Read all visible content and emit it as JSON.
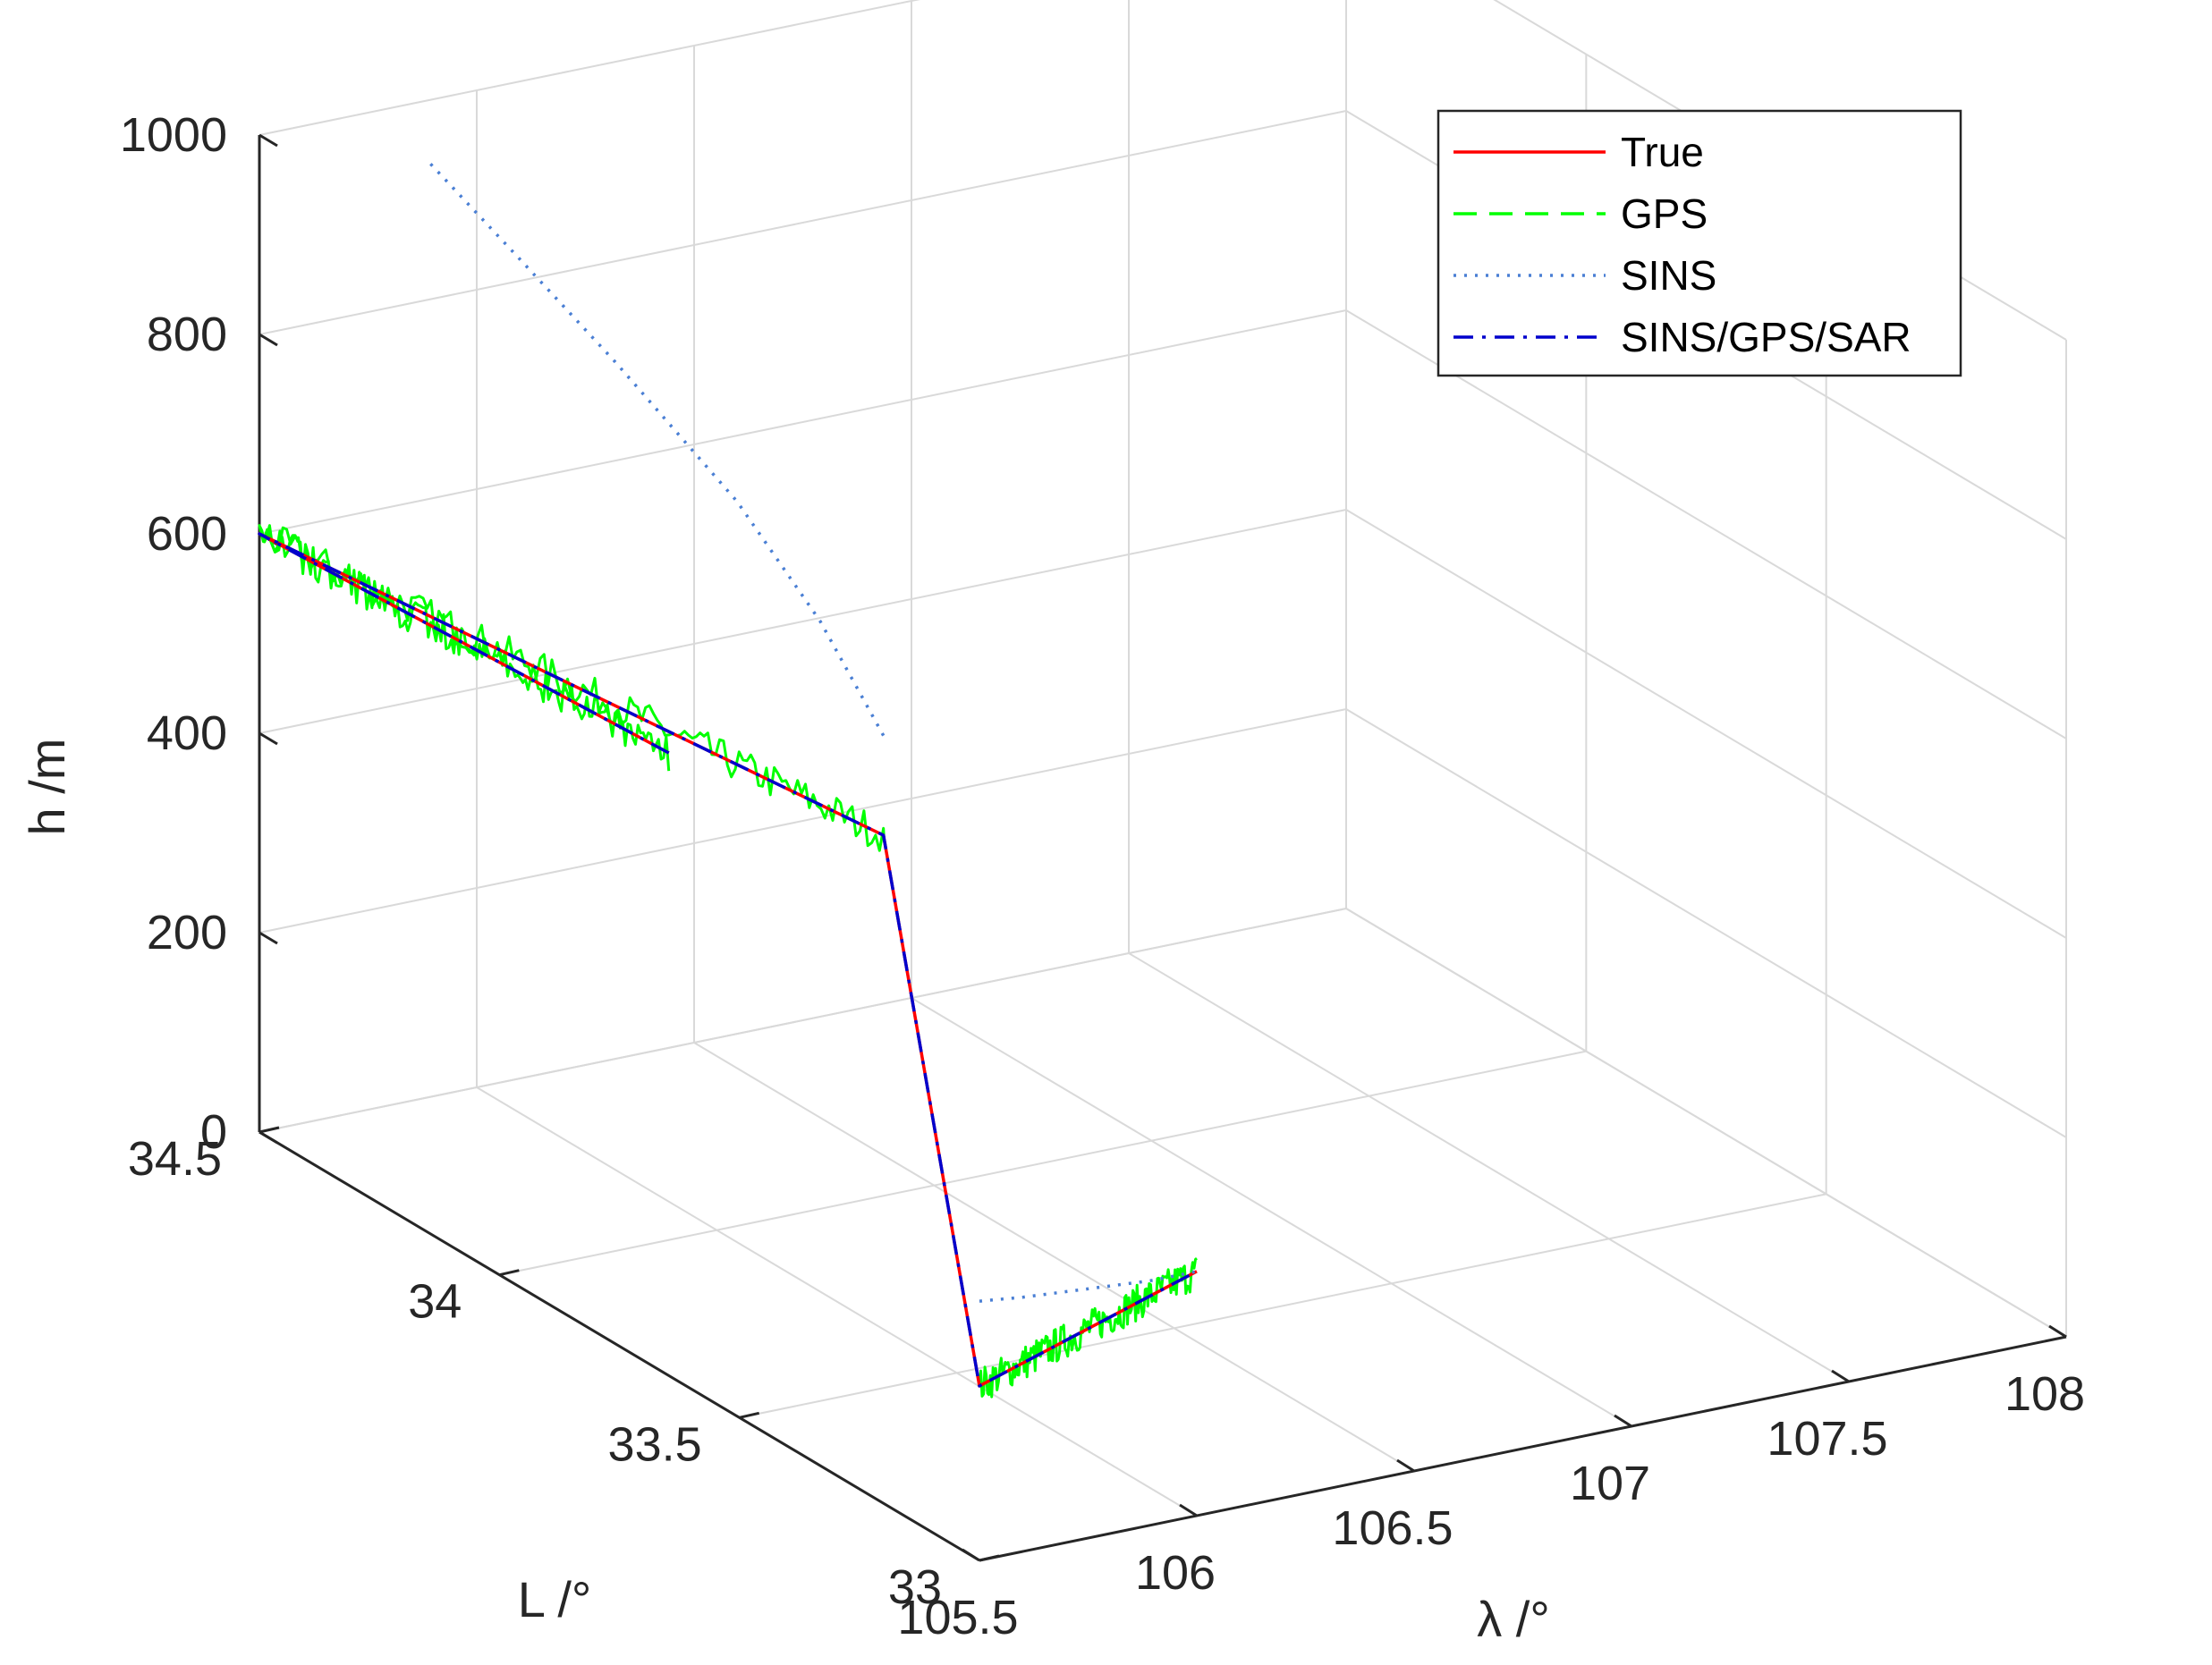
{
  "chart_data": {
    "type": "line",
    "projection": "3d",
    "xlabel": "λ /°",
    "ylabel": "L /°",
    "zlabel": "h /m",
    "xlim": [
      105.5,
      108
    ],
    "ylim": [
      33,
      34.5
    ],
    "zlim": [
      0,
      1000
    ],
    "x_ticks": [
      "105.5",
      "106",
      "106.5",
      "107",
      "107.5",
      "108"
    ],
    "y_ticks": [
      "33",
      "33.5",
      "34",
      "34.5"
    ],
    "z_ticks": [
      "0",
      "200",
      "400",
      "600",
      "800",
      "1000"
    ],
    "grid": true,
    "legend_position": "top-right",
    "series": [
      {
        "name": "True",
        "color": "#ff0000",
        "style": "solid",
        "points": [
          [
            106.0,
            34.1,
            450
          ],
          [
            105.5,
            34.5,
            600
          ],
          [
            105.5,
            33.2,
            670
          ],
          [
            105.5,
            33.0,
            175
          ],
          [
            106.0,
            33.0,
            245
          ]
        ]
      },
      {
        "name": "GPS",
        "color": "#00ff00",
        "style": "dashed",
        "noise": 18,
        "points": [
          [
            106.0,
            34.1,
            450
          ],
          [
            105.5,
            34.5,
            600
          ],
          [
            105.5,
            33.2,
            670
          ],
          [
            105.5,
            33.0,
            175
          ],
          [
            106.0,
            33.0,
            245
          ]
        ]
      },
      {
        "name": "SINS",
        "color": "#4a7fd4",
        "style": "dotted",
        "points": [
          [
            105.5,
            33.2,
            770
          ],
          [
            105.52,
            33.35,
            840
          ],
          [
            105.55,
            33.55,
            900
          ],
          [
            105.6,
            33.85,
            950
          ],
          [
            105.65,
            34.1,
            980
          ],
          [
            105.72,
            34.35,
            998
          ]
        ],
        "extra_points": [
          [
            105.5,
            33.0,
            260
          ],
          [
            105.6,
            33.0,
            255
          ],
          [
            105.75,
            33.0,
            250
          ],
          [
            105.9,
            33.0,
            245
          ],
          [
            106.0,
            33.0,
            245
          ]
        ]
      },
      {
        "name": "SINS/GPS/SAR",
        "color": "#0000cc",
        "style": "dashdot",
        "points": [
          [
            106.0,
            34.1,
            450
          ],
          [
            105.5,
            34.5,
            600
          ],
          [
            105.5,
            33.2,
            670
          ],
          [
            105.5,
            33.0,
            175
          ],
          [
            106.0,
            33.0,
            245
          ]
        ]
      }
    ]
  }
}
